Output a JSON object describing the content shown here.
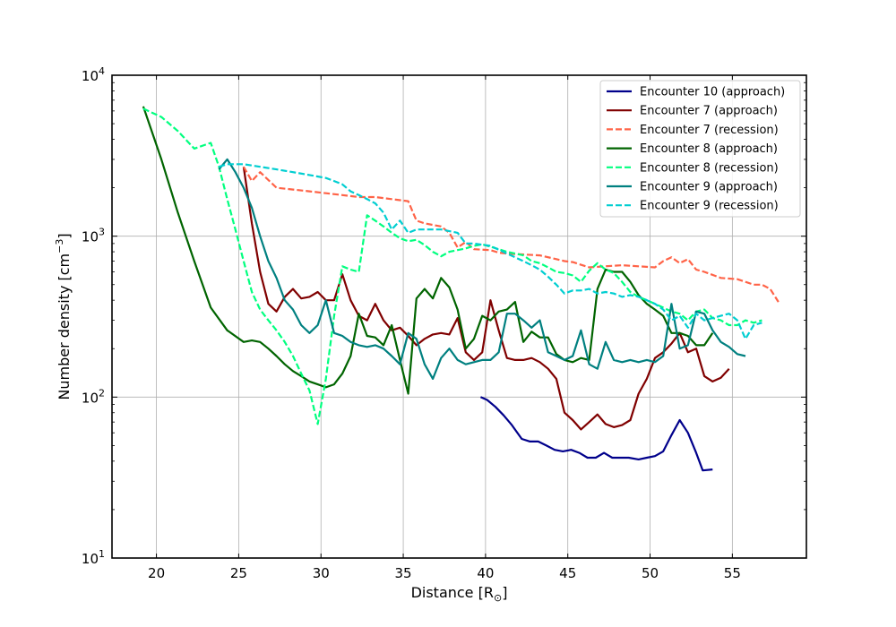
{
  "chart_data": {
    "type": "line",
    "xlabel": "Distance [R",
    "xlabel_sub": "⊙",
    "xlabel_end": "]",
    "ylabel": "Number density [cm",
    "ylabel_sup": "−3",
    "ylabel_end": "]",
    "xlim": [
      17.3,
      59.5
    ],
    "ylim": [
      10,
      10000
    ],
    "yscale": "log",
    "grid": true,
    "legend_position": "top-right",
    "x_ticks": [
      {
        "value": 20,
        "label": "20"
      },
      {
        "value": 25,
        "label": "25"
      },
      {
        "value": 30,
        "label": "30"
      },
      {
        "value": 35,
        "label": "35"
      },
      {
        "value": 40,
        "label": "40"
      },
      {
        "value": 45,
        "label": "45"
      },
      {
        "value": 50,
        "label": "50"
      },
      {
        "value": 55,
        "label": "55"
      }
    ],
    "y_ticks": [
      {
        "value": 10,
        "base": "10",
        "exp": "1"
      },
      {
        "value": 100,
        "base": "10",
        "exp": "2"
      },
      {
        "value": 1000,
        "base": "10",
        "exp": "3"
      },
      {
        "value": 10000,
        "base": "10",
        "exp": "4"
      }
    ],
    "series": [
      {
        "name": "Encounter 10 (approach)",
        "color": "#00008b",
        "dash": "solid",
        "x": [
          39.7,
          40.1,
          40.6,
          41.1,
          41.6,
          42.2,
          42.7,
          43.2,
          43.7,
          44.2,
          44.7,
          45.2,
          45.7,
          46.2,
          46.7,
          47.2,
          47.7,
          48.2,
          48.7,
          49.3,
          49.8,
          50.3,
          50.8,
          51.3,
          51.8,
          52.3,
          52.8,
          53.2,
          53.8
        ],
        "y": [
          100,
          96,
          87,
          77,
          67,
          55,
          53,
          53,
          50,
          47,
          46,
          47,
          45,
          42,
          42,
          45,
          42,
          42,
          42,
          41,
          42,
          43,
          46,
          58,
          72,
          60,
          45,
          35,
          35.5
        ]
      },
      {
        "name": "Encounter 7 (approach)",
        "color": "#800000",
        "dash": "solid",
        "x": [
          25.3,
          25.8,
          26.3,
          26.8,
          27.3,
          27.8,
          28.3,
          28.8,
          29.3,
          29.8,
          30.3,
          30.8,
          31.3,
          31.8,
          32.3,
          32.8,
          33.3,
          33.8,
          34.3,
          34.8,
          35.3,
          35.8,
          36.3,
          36.8,
          37.3,
          37.8,
          38.3,
          38.8,
          39.3,
          39.8,
          40.3,
          40.8,
          41.3,
          41.8,
          42.3,
          42.8,
          43.3,
          43.8,
          44.3,
          44.8,
          45.3,
          45.8,
          46.3,
          46.8,
          47.3,
          47.8,
          48.3,
          48.8,
          49.3,
          49.8,
          50.3,
          50.8,
          51.3,
          51.8,
          52.3,
          52.8,
          53.3,
          53.8,
          54.3,
          54.8
        ],
        "y": [
          2700,
          1200,
          600,
          380,
          340,
          420,
          470,
          410,
          420,
          450,
          400,
          400,
          580,
          400,
          320,
          300,
          380,
          300,
          260,
          270,
          240,
          210,
          230,
          245,
          250,
          245,
          310,
          190,
          170,
          190,
          400,
          260,
          175,
          170,
          170,
          175,
          165,
          150,
          130,
          80,
          72,
          63,
          70,
          78,
          68,
          65,
          67,
          72,
          105,
          130,
          175,
          190,
          215,
          250,
          190,
          200,
          135,
          125,
          132,
          150
        ]
      },
      {
        "name": "Encounter 7 (recession)",
        "color": "#ff6347",
        "dash": "dashed",
        "x": [
          25.3,
          25.8,
          26.3,
          27.3,
          28.3,
          29.3,
          30.3,
          31.3,
          32.3,
          33.3,
          34.3,
          35.3,
          35.8,
          36.3,
          37.3,
          37.8,
          38.3,
          38.8,
          39.3,
          40.3,
          40.8,
          41.3,
          42.3,
          43.3,
          44.3,
          44.8,
          45.3,
          46.3,
          47.3,
          48.3,
          49.3,
          50.3,
          50.8,
          51.3,
          51.8,
          52.3,
          52.8,
          53.3,
          54.3,
          55.3,
          55.8,
          56.3,
          56.8,
          57.3,
          57.8
        ],
        "y": [
          2700,
          2200,
          2500,
          2000,
          1950,
          1900,
          1850,
          1800,
          1750,
          1750,
          1700,
          1650,
          1250,
          1200,
          1150,
          1050,
          850,
          920,
          830,
          820,
          790,
          780,
          770,
          760,
          720,
          700,
          690,
          640,
          650,
          660,
          650,
          640,
          700,
          740,
          680,
          720,
          620,
          600,
          550,
          540,
          520,
          500,
          500,
          470,
          390
        ]
      },
      {
        "name": "Encounter 8 (approach)",
        "color": "#006400",
        "dash": "solid",
        "x": [
          19.2,
          20.3,
          21.3,
          22.3,
          23.3,
          24.3,
          25.3,
          25.8,
          26.3,
          26.8,
          27.3,
          27.8,
          28.3,
          28.8,
          29.3,
          29.8,
          30.3,
          30.8,
          31.3,
          31.8,
          32.3,
          32.8,
          33.3,
          33.8,
          34.3,
          34.8,
          35.3,
          35.8,
          36.3,
          36.8,
          37.3,
          37.8,
          38.3,
          38.8,
          39.3,
          39.8,
          40.3,
          40.8,
          41.3,
          41.8,
          42.3,
          42.8,
          43.3,
          43.8,
          44.3,
          44.8,
          45.3,
          45.8,
          46.3,
          46.8,
          47.3,
          47.8,
          48.3,
          48.8,
          49.3,
          49.8,
          50.3,
          50.8,
          51.3,
          51.8,
          52.3,
          52.8,
          53.3,
          53.8
        ],
        "y": [
          6400,
          3000,
          1400,
          700,
          360,
          260,
          220,
          225,
          220,
          200,
          180,
          160,
          145,
          135,
          125,
          120,
          115,
          120,
          140,
          180,
          330,
          240,
          235,
          210,
          280,
          170,
          105,
          410,
          470,
          410,
          550,
          480,
          350,
          200,
          230,
          320,
          300,
          340,
          350,
          390,
          220,
          255,
          235,
          235,
          185,
          170,
          165,
          175,
          170,
          470,
          620,
          600,
          600,
          520,
          430,
          380,
          350,
          320,
          250,
          250,
          240,
          210,
          210,
          250
        ]
      },
      {
        "name": "Encounter 8 (recession)",
        "color": "#00ff7f",
        "dash": "dashed",
        "x": [
          19.2,
          20.3,
          21.3,
          22.3,
          23.3,
          23.8,
          24.3,
          24.8,
          25.3,
          25.8,
          26.3,
          26.8,
          27.3,
          27.8,
          28.3,
          28.8,
          29.3,
          29.8,
          30.3,
          30.8,
          31.3,
          31.8,
          32.3,
          32.8,
          33.3,
          33.8,
          34.3,
          34.8,
          35.3,
          35.8,
          36.3,
          36.8,
          37.3,
          37.8,
          38.3,
          38.8,
          39.3,
          39.8,
          40.3,
          40.8,
          41.3,
          41.8,
          42.3,
          42.8,
          43.3,
          43.8,
          44.3,
          44.8,
          45.3,
          45.8,
          46.3,
          46.8,
          47.3,
          47.8,
          48.3,
          48.8,
          49.3,
          49.8,
          50.3,
          50.8,
          51.3,
          51.8,
          52.3,
          52.8,
          53.3,
          53.8,
          54.3,
          54.8,
          55.3,
          55.8,
          56.3,
          56.8
        ],
        "y": [
          6200,
          5500,
          4500,
          3500,
          3800,
          2700,
          1700,
          1100,
          700,
          450,
          350,
          300,
          260,
          220,
          180,
          140,
          110,
          68,
          130,
          320,
          650,
          620,
          600,
          1350,
          1250,
          1150,
          1050,
          970,
          930,
          950,
          880,
          800,
          750,
          800,
          820,
          840,
          870,
          890,
          860,
          830,
          800,
          780,
          760,
          700,
          680,
          640,
          600,
          590,
          570,
          520,
          610,
          680,
          620,
          590,
          520,
          450,
          420,
          400,
          380,
          360,
          340,
          330,
          300,
          340,
          350,
          310,
          300,
          280,
          280,
          300,
          290,
          300
        ]
      },
      {
        "name": "Encounter 9 (approach)",
        "color": "#008080",
        "dash": "solid",
        "x": [
          23.8,
          24.3,
          24.8,
          25.3,
          25.8,
          26.3,
          26.8,
          27.3,
          27.8,
          28.3,
          28.8,
          29.3,
          29.8,
          30.3,
          30.8,
          31.3,
          31.8,
          32.3,
          32.8,
          33.3,
          33.8,
          34.3,
          34.8,
          35.3,
          35.8,
          36.3,
          36.8,
          37.3,
          37.8,
          38.3,
          38.8,
          39.3,
          39.8,
          40.3,
          40.8,
          41.3,
          41.8,
          42.3,
          42.8,
          43.3,
          43.8,
          44.3,
          44.8,
          45.3,
          45.8,
          46.3,
          46.8,
          47.3,
          47.8,
          48.3,
          48.8,
          49.3,
          49.8,
          50.3,
          50.8,
          51.3,
          51.8,
          52.3,
          52.8,
          53.3,
          53.8,
          54.3,
          54.8,
          55.3,
          55.8
        ],
        "y": [
          2600,
          3000,
          2500,
          2000,
          1500,
          1000,
          700,
          550,
          400,
          350,
          280,
          250,
          280,
          400,
          250,
          240,
          220,
          210,
          205,
          210,
          200,
          180,
          160,
          250,
          230,
          160,
          130,
          175,
          200,
          170,
          160,
          165,
          170,
          170,
          190,
          330,
          330,
          300,
          270,
          300,
          190,
          180,
          170,
          180,
          260,
          160,
          150,
          220,
          170,
          165,
          170,
          165,
          170,
          165,
          180,
          380,
          200,
          210,
          340,
          330,
          260,
          220,
          205,
          185,
          180
        ]
      },
      {
        "name": "Encounter 9 (recession)",
        "color": "#00ced1",
        "dash": "dashed",
        "x": [
          23.8,
          24.3,
          25.3,
          26.3,
          27.3,
          28.3,
          29.3,
          30.3,
          30.8,
          31.3,
          31.8,
          32.3,
          32.8,
          33.3,
          33.8,
          34.3,
          34.8,
          35.3,
          35.8,
          36.3,
          37.3,
          38.3,
          38.8,
          39.3,
          40.3,
          41.3,
          42.3,
          42.8,
          43.3,
          43.8,
          44.3,
          44.8,
          45.3,
          45.8,
          46.3,
          46.8,
          47.3,
          47.8,
          48.3,
          48.8,
          49.3,
          49.8,
          50.3,
          50.8,
          51.3,
          51.8,
          52.3,
          52.8,
          53.3,
          53.8,
          54.3,
          54.8,
          55.3,
          55.8,
          56.3,
          56.8
        ],
        "y": [
          2700,
          2800,
          2800,
          2700,
          2600,
          2500,
          2400,
          2300,
          2200,
          2100,
          1900,
          1800,
          1700,
          1600,
          1400,
          1100,
          1250,
          1050,
          1100,
          1100,
          1100,
          1050,
          900,
          900,
          870,
          780,
          700,
          660,
          620,
          560,
          500,
          440,
          460,
          460,
          470,
          440,
          450,
          440,
          420,
          430,
          420,
          400,
          380,
          350,
          300,
          320,
          270,
          330,
          300,
          310,
          320,
          330,
          300,
          230,
          280,
          290
        ]
      }
    ]
  }
}
